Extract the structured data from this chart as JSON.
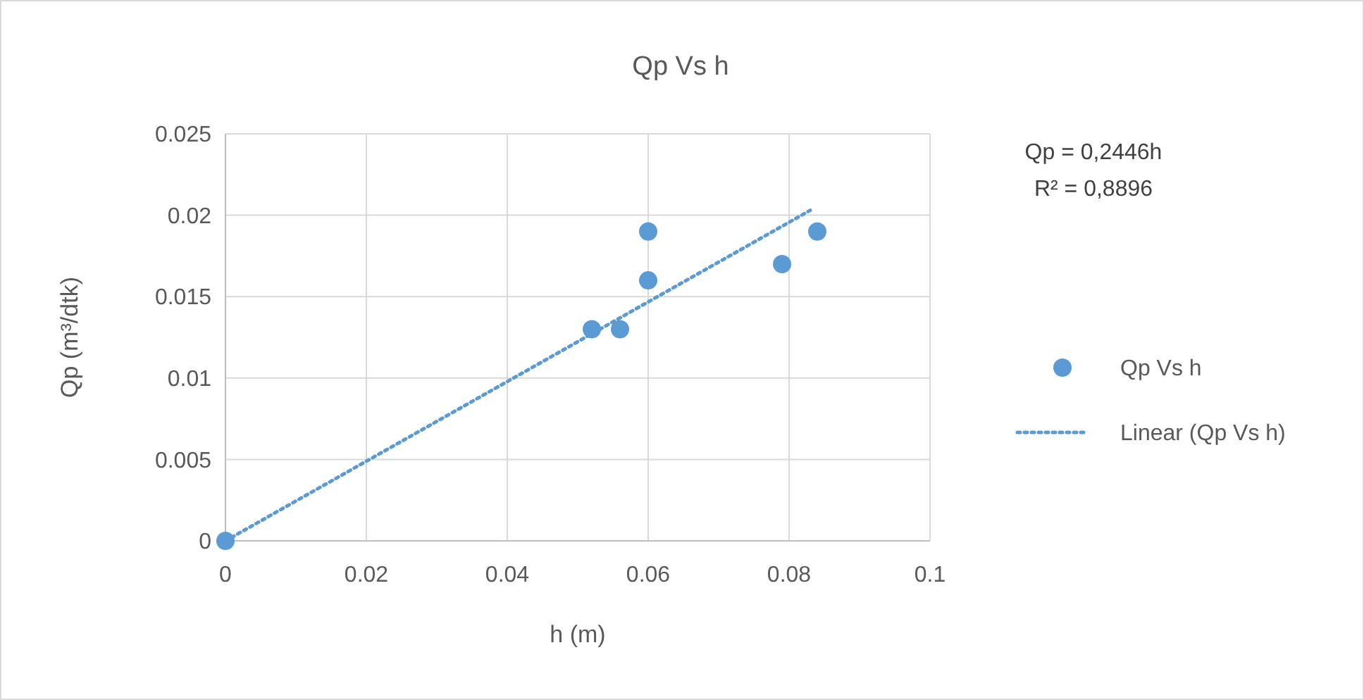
{
  "chart_data": {
    "type": "scatter",
    "title": "Qp Vs h",
    "xlabel": "h (m)",
    "ylabel": "Qp (m³/dtk)",
    "xlim": [
      0,
      0.1
    ],
    "xticks": [
      0,
      0.02,
      0.04,
      0.06,
      0.08,
      0.1
    ],
    "ylim": [
      0,
      0.025
    ],
    "yticks": [
      0,
      0.005,
      0.01,
      0.015,
      0.02,
      0.025
    ],
    "grid": true,
    "legend": "right",
    "annotations": [
      "Qp = 0,2446h",
      "R² = 0,8896"
    ],
    "series": [
      {
        "name": "Qp Vs h",
        "marker": "circle",
        "color": "#5b9bd5",
        "x": [
          0,
          0.052,
          0.056,
          0.06,
          0.06,
          0.079,
          0.084
        ],
        "values": [
          0,
          0.013,
          0.013,
          0.016,
          0.019,
          0.017,
          0.019
        ]
      },
      {
        "name": "Linear (Qp Vs h)",
        "type": "line",
        "marker": "none",
        "line_style": "dotted",
        "color": "#5b9bd5",
        "x": [
          0,
          0.083
        ],
        "values": [
          0,
          0.0203
        ]
      }
    ]
  }
}
